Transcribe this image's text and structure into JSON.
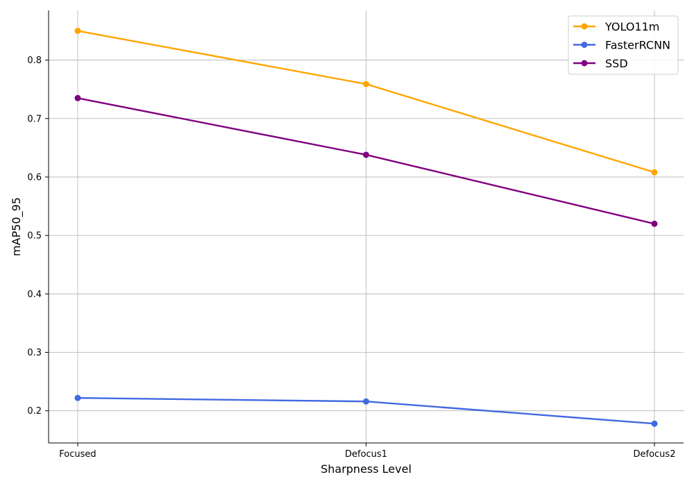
{
  "chart_data": {
    "type": "line",
    "title": "",
    "xlabel": "Sharpness Level",
    "ylabel": "mAP50_95",
    "categories": [
      "Focused",
      "Defocus1",
      "Defocus2"
    ],
    "ylim": [
      0.145,
      0.885
    ],
    "yticks": [
      0.2,
      0.3,
      0.4,
      0.5,
      0.6,
      0.7,
      0.8
    ],
    "ytick_labels": [
      "0.2",
      "0.3",
      "0.4",
      "0.5",
      "0.6",
      "0.7",
      "0.8"
    ],
    "grid": true,
    "legend_position": "top-right",
    "series": [
      {
        "name": "YOLO11m",
        "color": "#FFA500",
        "values": [
          0.85,
          0.759,
          0.608
        ]
      },
      {
        "name": "FasterRCNN",
        "color": "#4169E1",
        "values": [
          0.222,
          0.216,
          0.178
        ]
      },
      {
        "name": "SSD",
        "color": "#800080",
        "values": [
          0.735,
          0.638,
          0.52
        ]
      }
    ]
  }
}
